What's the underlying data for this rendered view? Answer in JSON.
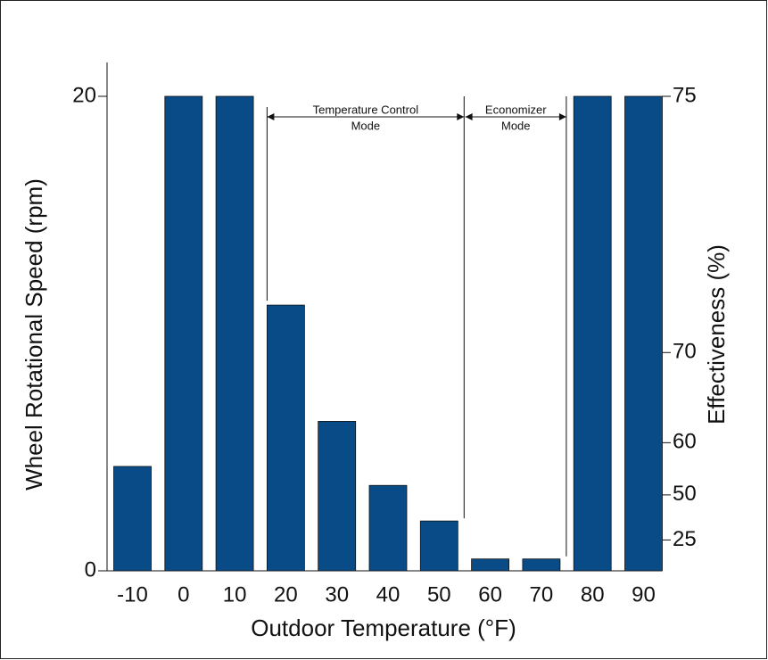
{
  "chart_data": {
    "type": "bar",
    "x_label": "Outdoor Temperature (°F)",
    "y_label": "Wheel Rotational Speed (rpm)",
    "y2_label": "Effectiveness (%)",
    "categories": [
      "-10",
      "0",
      "10",
      "20",
      "30",
      "40",
      "50",
      "60",
      "70",
      "80",
      "90"
    ],
    "values": [
      4.4,
      20,
      20,
      11.2,
      6.3,
      3.6,
      2.1,
      0.5,
      0.5,
      20,
      20
    ],
    "color": "#084b87",
    "tick_color": "#1d5a8f",
    "ylim": [
      0,
      20
    ],
    "yticks": [
      0,
      20
    ],
    "y2ticks": [
      25,
      50,
      60,
      70,
      75
    ],
    "y2ticks_rpm": [
      1.3,
      3.2,
      5.4,
      9.2,
      20
    ],
    "annotations": [
      {
        "lines": [
          "Temperature Control",
          "Mode"
        ],
        "from": 3,
        "to": 6
      },
      {
        "lines": [
          "Economizer",
          "Mode"
        ],
        "from": 7,
        "to": 8
      }
    ]
  }
}
